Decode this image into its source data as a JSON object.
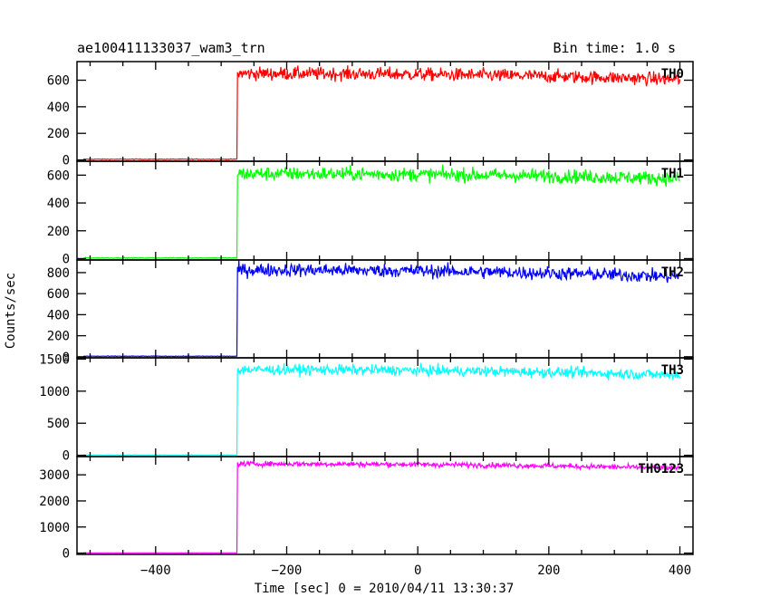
{
  "chart_data": {
    "type": "line",
    "title": "ae100411133037_wam3_trn",
    "subtitle": "Bin time: 1.0 s",
    "xlabel": "Time [sec] 0 = 2010/04/11 13:30:37",
    "ylabel": "Counts/sec",
    "xlim": [
      -520,
      420
    ],
    "xticks": [
      -400,
      -200,
      0,
      200,
      400
    ],
    "xticklabels": [
      "−400",
      "−200",
      "0",
      "200",
      "400"
    ],
    "x_start": -510,
    "x_end": 400,
    "step_time": -275,
    "grid": false,
    "panels": [
      {
        "name": "TH0",
        "color": "#ff0000",
        "ylim": [
          -10,
          740
        ],
        "yticks": [
          0,
          200,
          400,
          600
        ],
        "pre_level": 5,
        "post_level": 650,
        "late_level": 605,
        "noise": 55
      },
      {
        "name": "TH1",
        "color": "#00ff00",
        "ylim": [
          -10,
          700
        ],
        "yticks": [
          0,
          200,
          400,
          600
        ],
        "pre_level": 5,
        "post_level": 610,
        "late_level": 575,
        "noise": 55
      },
      {
        "name": "TH2",
        "color": "#0000ff",
        "ylim": [
          -10,
          920
        ],
        "yticks": [
          0,
          200,
          400,
          600,
          800
        ],
        "pre_level": 5,
        "post_level": 825,
        "late_level": 760,
        "noise": 70
      },
      {
        "name": "TH3",
        "color": "#00ffff",
        "ylim": [
          -20,
          1520
        ],
        "yticks": [
          0,
          500,
          1000,
          1500
        ],
        "pre_level": 5,
        "post_level": 1335,
        "late_level": 1250,
        "noise": 90
      },
      {
        "name": "TH0123",
        "color": "#ff00ff",
        "ylim": [
          -50,
          3700
        ],
        "yticks": [
          0,
          1000,
          2000,
          3000
        ],
        "pre_level": 10,
        "post_level": 3420,
        "late_level": 3250,
        "noise": 110
      }
    ]
  }
}
